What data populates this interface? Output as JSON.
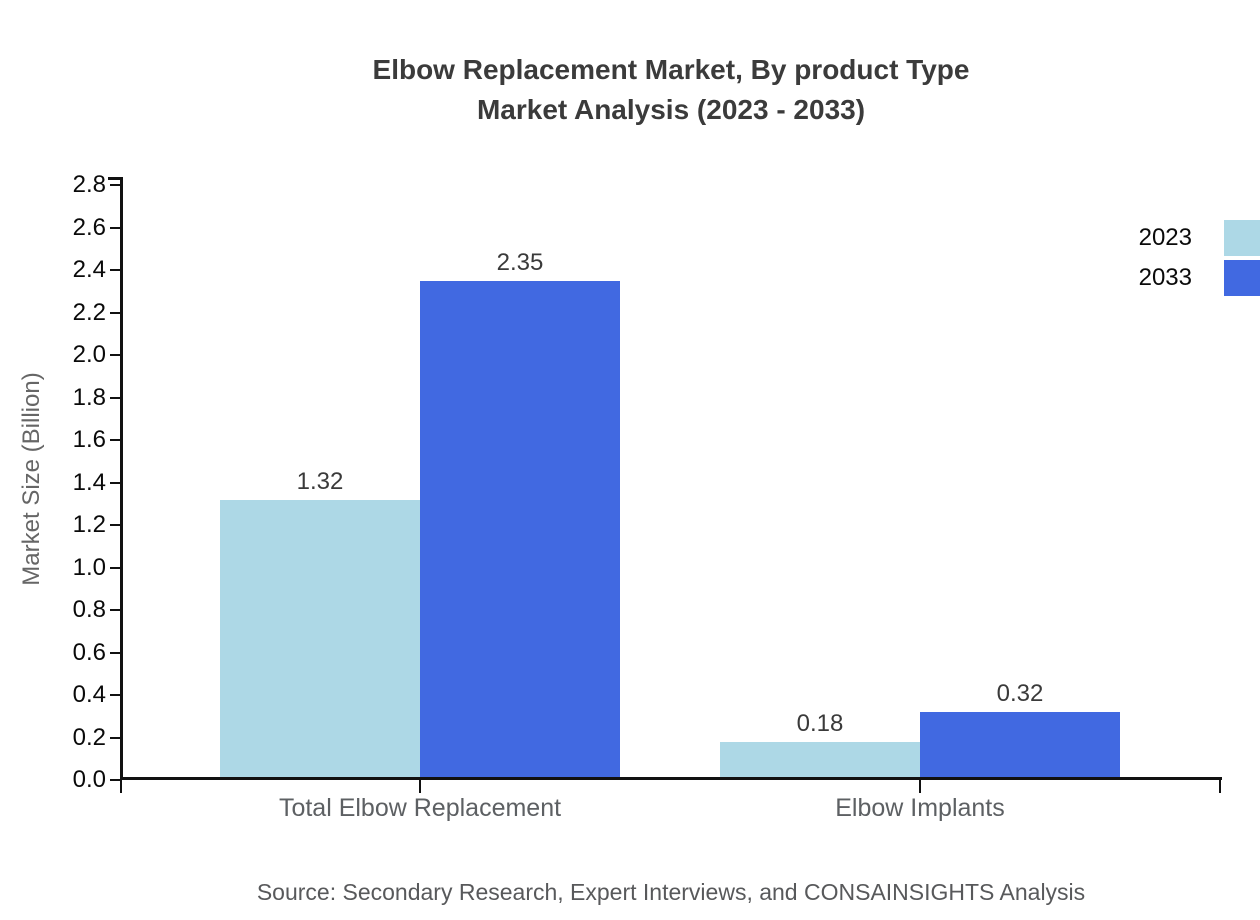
{
  "title": {
    "line1": "Elbow Replacement Market, By product Type",
    "line2": "Market Analysis (2023 - 2033)"
  },
  "chart_data": {
    "type": "bar",
    "title": "Elbow Replacement Market, By product Type Market Analysis (2023 - 2033)",
    "categories": [
      "Total Elbow Replacement",
      "Elbow Implants"
    ],
    "series": [
      {
        "name": "2023",
        "color": "#ADD8E6",
        "values": [
          1.32,
          0.18
        ],
        "value_labels": [
          "1.32",
          "0.18"
        ]
      },
      {
        "name": "2033",
        "color": "#4169E1",
        "values": [
          2.35,
          0.32
        ],
        "value_labels": [
          "2.35",
          "0.32"
        ]
      }
    ],
    "xlabel": "",
    "ylabel": "Market Size (Billion)",
    "ylim": [
      0.0,
      2.8
    ],
    "ytick_step": 0.2,
    "ytick_labels": [
      "0.0",
      "0.2",
      "0.4",
      "0.6",
      "0.8",
      "1.0",
      "1.2",
      "1.4",
      "1.6",
      "1.8",
      "2.0",
      "2.2",
      "2.4",
      "2.6",
      "2.8"
    ],
    "grid": false,
    "legend_position": "top-right",
    "value_labels_shown": true
  },
  "source_note": "Source: Secondary Research, Expert Interviews, and CONSAINSIGHTS Analysis",
  "colors": {
    "series_2023": "#ADD8E6",
    "series_2033": "#4169E1",
    "axis": "#111111",
    "title_text": "#3b3b3b",
    "category_text": "#5d6063",
    "source_text": "#58595b"
  }
}
